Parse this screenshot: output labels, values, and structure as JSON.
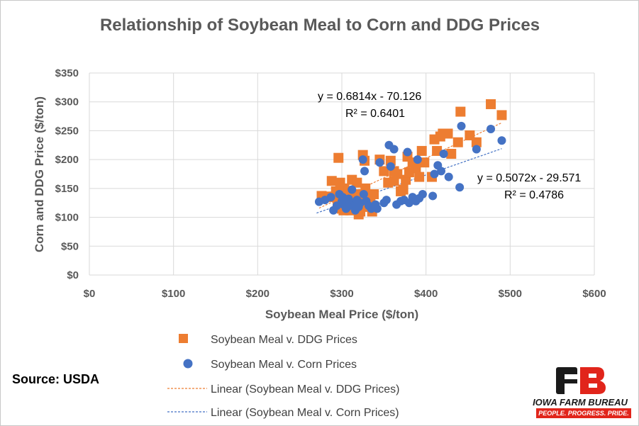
{
  "chart_data": {
    "type": "scatter",
    "title": "Relationship of Soybean Meal to Corn and DDG Prices",
    "xlabel": "Soybean Meal Price ($/ton)",
    "ylabel": "Corn and DDG Price ($/ton)",
    "xlim": [
      0,
      600
    ],
    "ylim": [
      0,
      350
    ],
    "x_ticks": [
      0,
      100,
      200,
      300,
      400,
      500,
      600
    ],
    "y_ticks": [
      0,
      50,
      100,
      150,
      200,
      250,
      300,
      350
    ],
    "x_tick_labels": [
      "$0",
      "$100",
      "$200",
      "$300",
      "$400",
      "$500",
      "$600"
    ],
    "y_tick_labels": [
      "$0",
      "$50",
      "$100",
      "$150",
      "$200",
      "$250",
      "$300",
      "$350"
    ],
    "grid": "vertical and horizontal major gridlines",
    "legend_position": "bottom",
    "series": [
      {
        "name": "Soybean Meal v. DDG Prices",
        "marker": "square",
        "color": "#ED7D31",
        "points": [
          [
            276,
            137
          ],
          [
            285,
            136
          ],
          [
            288,
            163
          ],
          [
            290,
            135
          ],
          [
            293,
            145
          ],
          [
            295,
            125
          ],
          [
            296,
            203
          ],
          [
            298,
            160
          ],
          [
            300,
            115
          ],
          [
            302,
            112
          ],
          [
            303,
            150
          ],
          [
            305,
            135
          ],
          [
            306,
            120
          ],
          [
            308,
            145
          ],
          [
            310,
            112
          ],
          [
            312,
            165
          ],
          [
            314,
            140
          ],
          [
            316,
            130
          ],
          [
            318,
            160
          ],
          [
            320,
            105
          ],
          [
            322,
            110
          ],
          [
            323,
            140
          ],
          [
            325,
            208
          ],
          [
            327,
            198
          ],
          [
            328,
            150
          ],
          [
            330,
            125
          ],
          [
            332,
            118
          ],
          [
            334,
            135
          ],
          [
            336,
            110
          ],
          [
            338,
            140
          ],
          [
            345,
            200
          ],
          [
            350,
            180
          ],
          [
            355,
            160
          ],
          [
            358,
            198
          ],
          [
            362,
            163
          ],
          [
            366,
            175
          ],
          [
            370,
            145
          ],
          [
            373,
            148
          ],
          [
            376,
            165
          ],
          [
            378,
            205
          ],
          [
            384,
            195
          ],
          [
            388,
            185
          ],
          [
            392,
            170
          ],
          [
            395,
            215
          ],
          [
            398,
            195
          ],
          [
            407,
            170
          ],
          [
            410,
            235
          ],
          [
            413,
            215
          ],
          [
            417,
            240
          ],
          [
            420,
            245
          ],
          [
            426,
            245
          ],
          [
            430,
            210
          ],
          [
            438,
            230
          ],
          [
            441,
            283
          ],
          [
            452,
            242
          ],
          [
            460,
            230
          ],
          [
            477,
            296
          ],
          [
            490,
            277
          ],
          [
            362,
            180
          ],
          [
            380,
            178
          ]
        ]
      },
      {
        "name": "Soybean Meal v. Corn Prices",
        "marker": "circle",
        "color": "#4472C4",
        "points": [
          [
            273,
            127
          ],
          [
            280,
            130
          ],
          [
            287,
            135
          ],
          [
            290,
            112
          ],
          [
            294,
            120
          ],
          [
            297,
            140
          ],
          [
            300,
            128
          ],
          [
            302,
            122
          ],
          [
            305,
            115
          ],
          [
            308,
            132
          ],
          [
            310,
            125
          ],
          [
            312,
            148
          ],
          [
            314,
            120
          ],
          [
            316,
            112
          ],
          [
            318,
            130
          ],
          [
            320,
            118
          ],
          [
            322,
            125
          ],
          [
            325,
            200
          ],
          [
            326,
            140
          ],
          [
            327,
            180
          ],
          [
            329,
            128
          ],
          [
            332,
            120
          ],
          [
            335,
            115
          ],
          [
            340,
            122
          ],
          [
            342,
            115
          ],
          [
            345,
            195
          ],
          [
            350,
            125
          ],
          [
            353,
            130
          ],
          [
            356,
            225
          ],
          [
            358,
            188
          ],
          [
            362,
            218
          ],
          [
            365,
            122
          ],
          [
            370,
            128
          ],
          [
            374,
            130
          ],
          [
            378,
            213
          ],
          [
            380,
            125
          ],
          [
            384,
            135
          ],
          [
            388,
            128
          ],
          [
            390,
            200
          ],
          [
            392,
            133
          ],
          [
            396,
            140
          ],
          [
            408,
            137
          ],
          [
            410,
            175
          ],
          [
            414,
            190
          ],
          [
            418,
            180
          ],
          [
            421,
            210
          ],
          [
            427,
            170
          ],
          [
            440,
            152
          ],
          [
            442,
            258
          ],
          [
            460,
            218
          ],
          [
            477,
            253
          ],
          [
            490,
            233
          ],
          [
            301,
            135
          ],
          [
            307,
            118
          ]
        ]
      }
    ],
    "trendlines": [
      {
        "name": "Linear (Soybean Meal v. DDG Prices)",
        "color": "#ED7D31",
        "slope": 0.6814,
        "intercept": -70.126,
        "equation": "y = 0.6814x - 70.126",
        "r2": "R² = 0.6401",
        "x_range": [
          273,
          490
        ]
      },
      {
        "name": "Linear (Soybean Meal v. Corn Prices)",
        "color": "#4472C4",
        "slope": 0.5072,
        "intercept": -29.571,
        "equation": "y = 0.5072x - 29.571",
        "r2": "R² = 0.4786",
        "x_range": [
          270,
          490
        ]
      }
    ]
  },
  "source": "Source: USDA",
  "logo": {
    "name": "IOWA FARM BUREAU",
    "tagline": "PEOPLE. PROGRESS. PRIDE.",
    "colors": {
      "dark": "#1a1a1a",
      "red": "#E1251B"
    }
  }
}
